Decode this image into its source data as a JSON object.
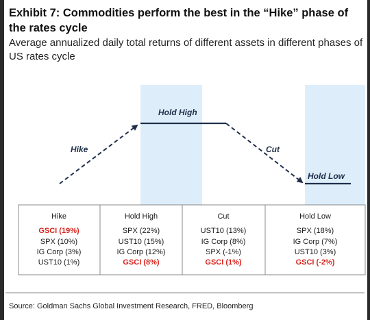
{
  "title": "Exhibit 7: Commodities perform the best in the “Hike” phase of the rates cycle",
  "subtitle": "Average annualized daily total returns of different assets in different phases of US rates cycle",
  "colors": {
    "shade": "#ddeefa",
    "line": "#1f2f4a",
    "highlight": "#d9231d"
  },
  "phases": [
    {
      "label": "Hike",
      "header": "Hike",
      "items": [
        {
          "text": "GSCI (19%)",
          "highlight": true
        },
        {
          "text": "SPX (10%)",
          "highlight": false
        },
        {
          "text": "IG Corp (3%)",
          "highlight": false
        },
        {
          "text": "UST10 (1%)",
          "highlight": false
        }
      ]
    },
    {
      "label": "Hold High",
      "header": "Hold High",
      "items": [
        {
          "text": "SPX (22%)",
          "highlight": false
        },
        {
          "text": "UST10 (15%)",
          "highlight": false
        },
        {
          "text": "IG Corp (12%)",
          "highlight": false
        },
        {
          "text": "GSCI (8%)",
          "highlight": true
        }
      ]
    },
    {
      "label": "Cut",
      "header": "Cut",
      "items": [
        {
          "text": "UST10 (13%)",
          "highlight": false
        },
        {
          "text": "IG Corp (8%)",
          "highlight": false
        },
        {
          "text": "SPX (-1%)",
          "highlight": false
        },
        {
          "text": "GSCI (1%)",
          "highlight": true
        }
      ]
    },
    {
      "label": "Hold Low",
      "header": "Hold Low",
      "items": [
        {
          "text": "SPX (18%)",
          "highlight": false
        },
        {
          "text": "IG Corp (7%)",
          "highlight": false
        },
        {
          "text": "UST10 (3%)",
          "highlight": false
        },
        {
          "text": "GSCI (-2%)",
          "highlight": true
        }
      ]
    }
  ],
  "source": "Source: Goldman Sachs Global Investment Research, FRED, Bloomberg"
}
